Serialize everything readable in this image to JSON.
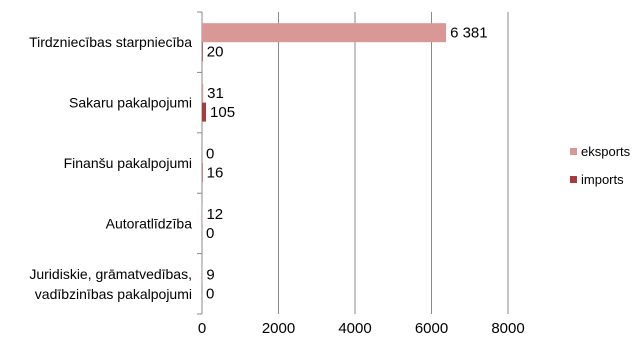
{
  "chart_data": {
    "type": "bar",
    "orientation": "horizontal",
    "categories": [
      [
        "Tirdzniecības starpniecība"
      ],
      [
        "Sakaru pakalpojumi"
      ],
      [
        "Finanšu pakalpojumi"
      ],
      [
        "Autoratlīdzība"
      ],
      [
        "Juridiskie, grāmatvedības,",
        "vadībzinības  pakalpojumi"
      ]
    ],
    "series": [
      {
        "name": "eksports",
        "color": "#d99795",
        "values": [
          6381,
          31,
          0,
          12,
          9
        ],
        "labels": [
          "6 381",
          "31",
          "0",
          "12",
          "9"
        ]
      },
      {
        "name": "imports",
        "color": "#a53b3a",
        "values": [
          20,
          105,
          16,
          0,
          0
        ],
        "labels": [
          "20",
          "105",
          "16",
          "0",
          "0"
        ]
      }
    ],
    "xlim": [
      0,
      8000
    ],
    "xticks": [
      0,
      2000,
      4000,
      6000,
      8000
    ],
    "grid": true,
    "legend_position": "right"
  }
}
